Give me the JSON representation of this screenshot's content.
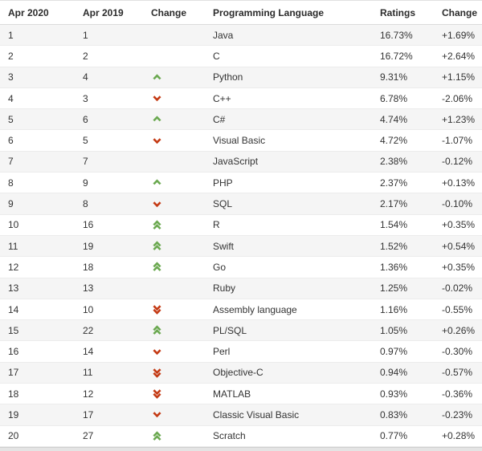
{
  "table": {
    "columns": [
      {
        "key": "pos2020",
        "label": "Apr 2020"
      },
      {
        "key": "pos2019",
        "label": "Apr 2019"
      },
      {
        "key": "change",
        "label": "Change"
      },
      {
        "key": "language",
        "label": "Programming Language"
      },
      {
        "key": "ratings",
        "label": "Ratings"
      },
      {
        "key": "delta",
        "label": "Change"
      }
    ],
    "rows": [
      {
        "pos2020": "1",
        "pos2019": "1",
        "change": "none",
        "language": "Java",
        "ratings": "16.73%",
        "delta": "+1.69%"
      },
      {
        "pos2020": "2",
        "pos2019": "2",
        "change": "none",
        "language": "C",
        "ratings": "16.72%",
        "delta": "+2.64%"
      },
      {
        "pos2020": "3",
        "pos2019": "4",
        "change": "up",
        "language": "Python",
        "ratings": "9.31%",
        "delta": "+1.15%"
      },
      {
        "pos2020": "4",
        "pos2019": "3",
        "change": "down",
        "language": "C++",
        "ratings": "6.78%",
        "delta": "-2.06%"
      },
      {
        "pos2020": "5",
        "pos2019": "6",
        "change": "up",
        "language": "C#",
        "ratings": "4.74%",
        "delta": "+1.23%"
      },
      {
        "pos2020": "6",
        "pos2019": "5",
        "change": "down",
        "language": "Visual Basic",
        "ratings": "4.72%",
        "delta": "-1.07%"
      },
      {
        "pos2020": "7",
        "pos2019": "7",
        "change": "none",
        "language": "JavaScript",
        "ratings": "2.38%",
        "delta": "-0.12%"
      },
      {
        "pos2020": "8",
        "pos2019": "9",
        "change": "up",
        "language": "PHP",
        "ratings": "2.37%",
        "delta": "+0.13%"
      },
      {
        "pos2020": "9",
        "pos2019": "8",
        "change": "down",
        "language": "SQL",
        "ratings": "2.17%",
        "delta": "-0.10%"
      },
      {
        "pos2020": "10",
        "pos2019": "16",
        "change": "up2",
        "language": "R",
        "ratings": "1.54%",
        "delta": "+0.35%"
      },
      {
        "pos2020": "11",
        "pos2019": "19",
        "change": "up2",
        "language": "Swift",
        "ratings": "1.52%",
        "delta": "+0.54%"
      },
      {
        "pos2020": "12",
        "pos2019": "18",
        "change": "up2",
        "language": "Go",
        "ratings": "1.36%",
        "delta": "+0.35%"
      },
      {
        "pos2020": "13",
        "pos2019": "13",
        "change": "none",
        "language": "Ruby",
        "ratings": "1.25%",
        "delta": "-0.02%"
      },
      {
        "pos2020": "14",
        "pos2019": "10",
        "change": "down2",
        "language": "Assembly language",
        "ratings": "1.16%",
        "delta": "-0.55%"
      },
      {
        "pos2020": "15",
        "pos2019": "22",
        "change": "up2",
        "language": "PL/SQL",
        "ratings": "1.05%",
        "delta": "+0.26%"
      },
      {
        "pos2020": "16",
        "pos2019": "14",
        "change": "down",
        "language": "Perl",
        "ratings": "0.97%",
        "delta": "-0.30%"
      },
      {
        "pos2020": "17",
        "pos2019": "11",
        "change": "down2",
        "language": "Objective-C",
        "ratings": "0.94%",
        "delta": "-0.57%"
      },
      {
        "pos2020": "18",
        "pos2019": "12",
        "change": "down2",
        "language": "MATLAB",
        "ratings": "0.93%",
        "delta": "-0.36%"
      },
      {
        "pos2020": "19",
        "pos2019": "17",
        "change": "down",
        "language": "Classic Visual Basic",
        "ratings": "0.83%",
        "delta": "-0.23%"
      },
      {
        "pos2020": "20",
        "pos2019": "27",
        "change": "up2",
        "language": "Scratch",
        "ratings": "0.77%",
        "delta": "+0.28%"
      }
    ]
  },
  "colors": {
    "up_arrow": "#6aa84f",
    "down_arrow": "#c43a14",
    "row_alt_bg": "#f5f5f5",
    "text": "#333333"
  }
}
